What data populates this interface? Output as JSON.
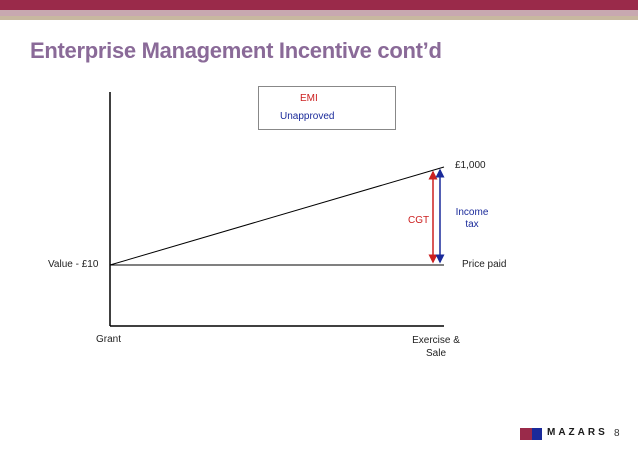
{
  "colors": {
    "band_top": "#9a2a4a",
    "band_mid": "#c8a8b0",
    "band_low": "#c8b8a0",
    "title": "#8a6a98",
    "emi_arrow": "#cc2020",
    "unapproved_arrow": "#1a2a9a",
    "logo_dark": "#1a1a1a"
  },
  "slide": {
    "title": "Enterprise Management Incentive cont’d",
    "page_number": "8"
  },
  "legend": {
    "emi": "EMI",
    "unapproved": "Unapproved"
  },
  "diagram": {
    "value_label": "Value - £10",
    "top_value": "£1,000",
    "price_paid": "Price paid",
    "cgt": "CGT",
    "income_tax_line1": "Income",
    "income_tax_line2": "tax",
    "grant": "Grant",
    "exercise_line1": "Exercise &",
    "exercise_line2": "Sale"
  },
  "logo": {
    "text": "MAZARS",
    "icon": "mazars-logo-mark"
  }
}
